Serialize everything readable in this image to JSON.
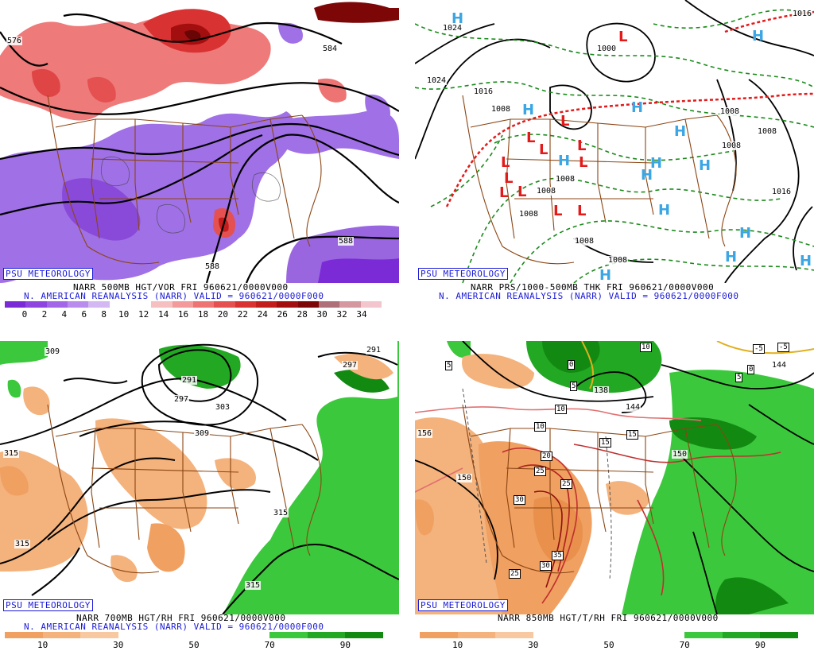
{
  "branding": "PSU METEOROLOGY",
  "panels": [
    {
      "title": "NARR 500MB HGT/VOR FRI 960621/0000V000",
      "subtitle": "N. AMERICAN REANALYSIS (NARR) VALID = 960621/0000F000",
      "contour_labels": [
        "576",
        "584",
        "588",
        "588"
      ],
      "colorbar": {
        "ticks": [
          "0",
          "2",
          "4",
          "6",
          "8",
          "10",
          "12",
          "14",
          "16",
          "18",
          "20",
          "22",
          "24",
          "26",
          "28",
          "30",
          "32",
          "34"
        ],
        "colors": [
          "#7a2bd6",
          "#8f45e0",
          "#a466e8",
          "#b98cee",
          "#d3b8f3",
          "#ffffff",
          "#ffffff",
          "#f6c0c0",
          "#f39a9a",
          "#ee7474",
          "#e55050",
          "#d93232",
          "#c21e1e",
          "#a30f0f",
          "#7d0707",
          "#b0707a",
          "#d597a0",
          "#f2c6cc"
        ]
      }
    },
    {
      "title": "NARR PRS/1000-500MB THK FRI 960621/0000V000",
      "subtitle": "N. AMERICAN REANALYSIS (NARR) VALID = 960621/0000F000",
      "pressure_labels": [
        "1024",
        "1024",
        "1000",
        "1016",
        "1008",
        "1008",
        "1008",
        "1008",
        "1008",
        "1008",
        "1008",
        "1016",
        "1008",
        "1008",
        "1016"
      ],
      "high_symbol": "H",
      "low_symbol": "L"
    },
    {
      "title": "NARR 700MB HGT/RH FRI 960621/0000V000",
      "subtitle": "N. AMERICAN REANALYSIS (NARR) VALID = 960621/0000F000",
      "contour_labels": [
        "309",
        "291",
        "297",
        "303",
        "309",
        "315",
        "315",
        "315",
        "315",
        "291",
        "297"
      ],
      "colorbar": {
        "ticks": [
          "10",
          "30",
          "50",
          "70",
          "90"
        ],
        "colors": [
          "#f0a060",
          "#f4b27c",
          "#f8c8a0",
          "#ffffff",
          "#ffffff",
          "#ffffff",
          "#ffffff",
          "#3cc83c",
          "#22a822",
          "#128a12"
        ]
      }
    },
    {
      "title": "NARR 850MB HGT/T/RH FRI 960621/0000V000",
      "subtitle": "",
      "contour_labels": [
        "156",
        "150",
        "144",
        "150",
        "138",
        "144"
      ],
      "temp_labels": [
        "5",
        "0",
        "5",
        "10",
        "10",
        "15",
        "15",
        "20",
        "25",
        "25",
        "30",
        "30",
        "35",
        "25",
        "-5",
        "-5",
        "0",
        "5",
        "10",
        "10"
      ],
      "colorbar": {
        "ticks": [
          "10",
          "30",
          "50",
          "70",
          "90"
        ],
        "colors": [
          "#f0a060",
          "#f4b27c",
          "#f8c8a0",
          "#ffffff",
          "#ffffff",
          "#ffffff",
          "#ffffff",
          "#3cc83c",
          "#22a822",
          "#128a12"
        ]
      }
    }
  ]
}
